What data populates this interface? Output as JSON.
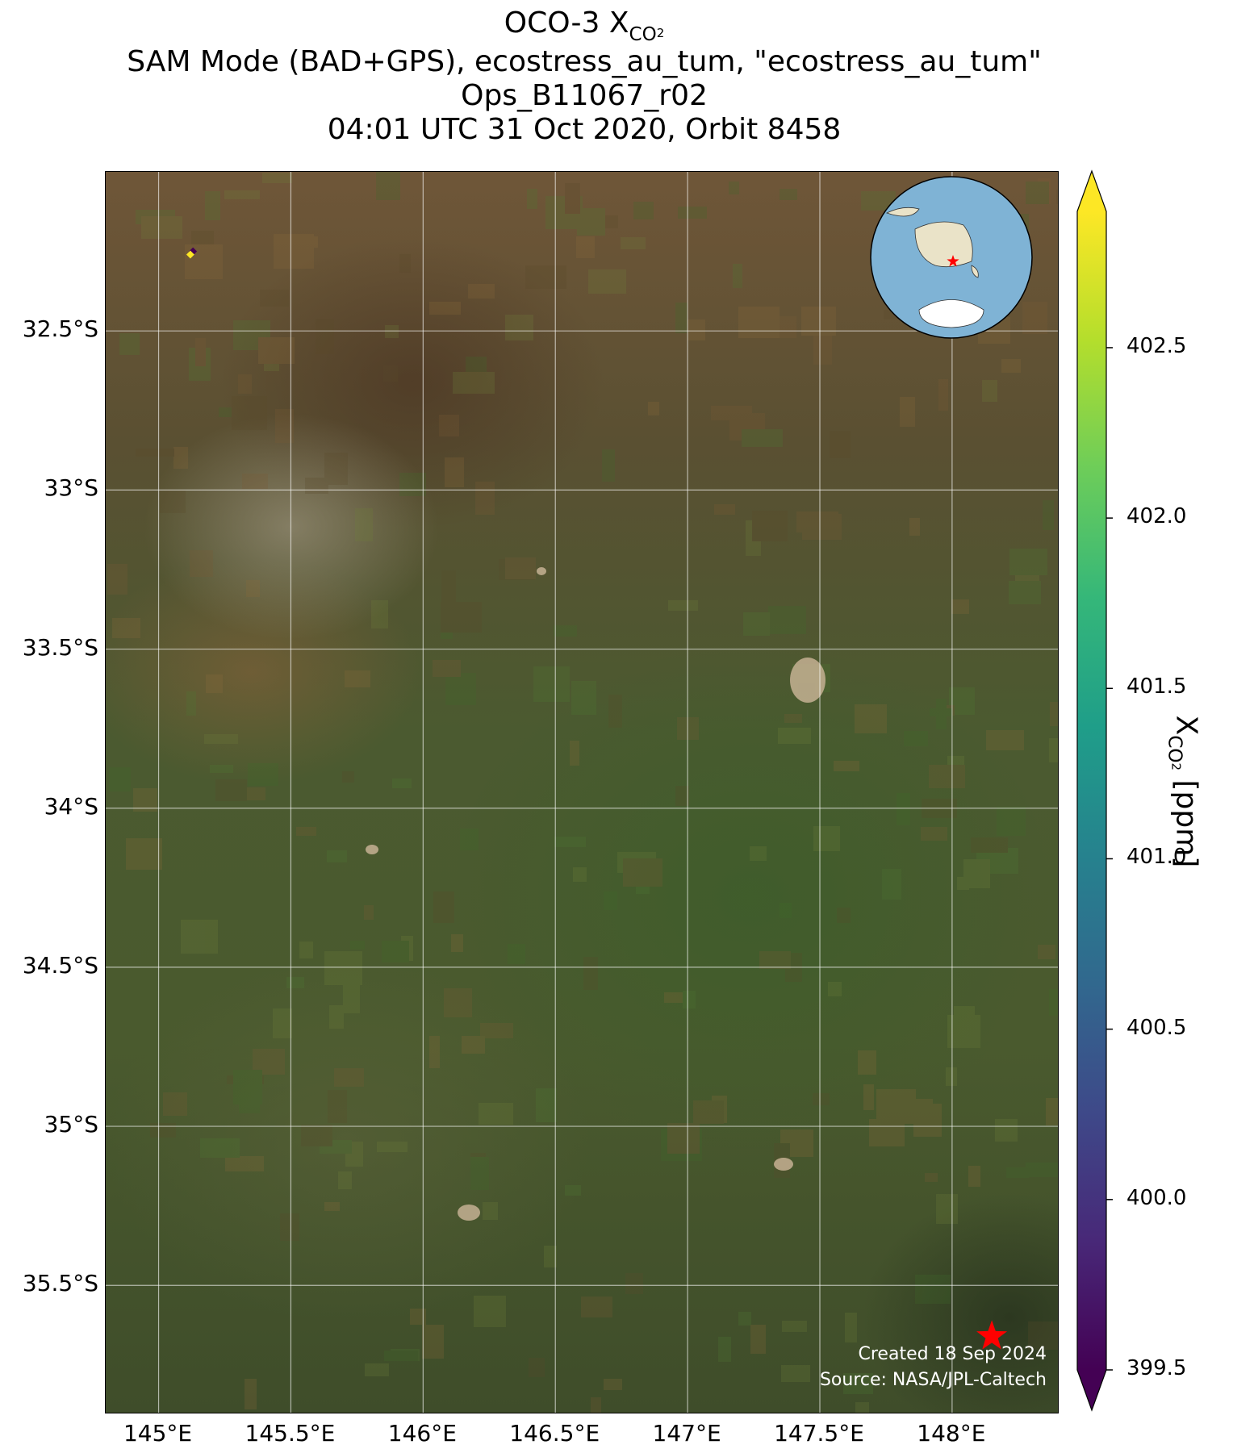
{
  "title": {
    "line1_prefix": "OCO-3 X",
    "line1_sub": "CO",
    "line1_subsub": "2",
    "line2": "SAM Mode (BAD+GPS), ecostress_au_tum, \"ecostress_au_tum\"",
    "line3": "Ops_B11067_r02",
    "line4": "04:01 UTC 31 Oct 2020, Orbit 8458"
  },
  "map": {
    "lat_ticks": [
      {
        "value": -32.5,
        "label": "32.5°S"
      },
      {
        "value": -33.0,
        "label": "33°S"
      },
      {
        "value": -33.5,
        "label": "33.5°S"
      },
      {
        "value": -34.0,
        "label": "34°S"
      },
      {
        "value": -34.5,
        "label": "34.5°S"
      },
      {
        "value": -35.0,
        "label": "35°S"
      },
      {
        "value": -35.5,
        "label": "35.5°S"
      }
    ],
    "lon_ticks": [
      {
        "value": 145.0,
        "label": "145°E"
      },
      {
        "value": 145.5,
        "label": "145.5°E"
      },
      {
        "value": 146.0,
        "label": "146°E"
      },
      {
        "value": 146.5,
        "label": "146.5°E"
      },
      {
        "value": 147.0,
        "label": "147°E"
      },
      {
        "value": 147.5,
        "label": "147.5°E"
      },
      {
        "value": 148.0,
        "label": "148°E"
      }
    ],
    "extent": {
      "lon_min": 144.8,
      "lon_max": 148.4,
      "lat_min": -35.9,
      "lat_max": -32.0
    },
    "target": {
      "lon": 148.15,
      "lat": -35.66,
      "marker": "star-icon",
      "color": "#ff0000"
    },
    "soundings": [
      {
        "lon": 145.13,
        "lat": -32.25,
        "xco2": 399.5
      },
      {
        "lon": 145.12,
        "lat": -32.26,
        "xco2": 402.9
      }
    ],
    "credit_line1": "Created 18 Sep 2024",
    "credit_line2": "Source: NASA/JPL-Caltech",
    "inset": {
      "type": "globe",
      "ocean_color": "#7fb3d5",
      "land_color": "#eae3c8",
      "marker_color": "#ff0000"
    }
  },
  "colorbar": {
    "min": 399.5,
    "max": 402.9,
    "colormap": "viridis",
    "extend": "both",
    "ticks": [
      "399.5",
      "400.0",
      "400.5",
      "401.0",
      "401.5",
      "402.0",
      "402.5"
    ],
    "label_prefix": "X",
    "label_sub": "CO",
    "label_subsub": "2",
    "label_suffix": " [ppm]"
  }
}
